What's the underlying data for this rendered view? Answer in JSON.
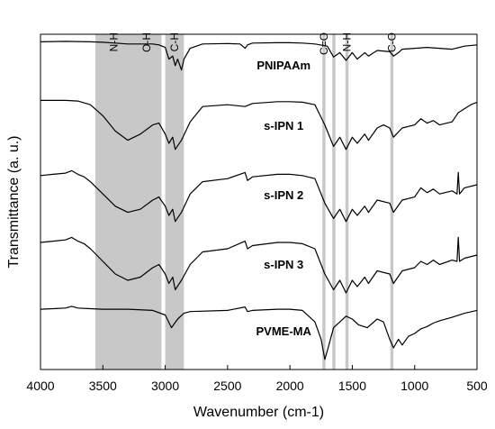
{
  "chart_data": {
    "type": "line",
    "xlabel": "Wavenumber (cm-1)",
    "ylabel": "Transmittance (a. u.)",
    "xlim": [
      4000,
      500
    ],
    "x_reversed": true,
    "x_ticks": [
      4000,
      3500,
      3000,
      2500,
      2000,
      1500,
      1000,
      500
    ],
    "grid": false,
    "shaded_regions": [
      {
        "from": 3560,
        "to": 3030,
        "labels": [
          "N-H",
          "O-H"
        ]
      },
      {
        "from": 3000,
        "to": 2850,
        "labels": [
          "C-H"
        ]
      },
      {
        "from": 1740,
        "to": 1715,
        "labels": [
          "C=O"
        ]
      },
      {
        "from": 1660,
        "to": 1635,
        "labels": []
      },
      {
        "from": 1555,
        "to": 1530,
        "labels": [
          "N-H"
        ]
      },
      {
        "from": 1195,
        "to": 1170,
        "labels": [
          "C-O"
        ]
      }
    ],
    "series": [
      {
        "name": "PNIPAAm",
        "points": [
          [
            4000,
            0.95
          ],
          [
            3800,
            0.96
          ],
          [
            3600,
            0.95
          ],
          [
            3500,
            0.94
          ],
          [
            3400,
            0.92
          ],
          [
            3300,
            0.9
          ],
          [
            3200,
            0.9
          ],
          [
            3100,
            0.9
          ],
          [
            3050,
            0.88
          ],
          [
            3000,
            0.82
          ],
          [
            2970,
            0.55
          ],
          [
            2940,
            0.62
          ],
          [
            2920,
            0.4
          ],
          [
            2900,
            0.55
          ],
          [
            2870,
            0.3
          ],
          [
            2850,
            0.55
          ],
          [
            2800,
            0.8
          ],
          [
            2700,
            0.9
          ],
          [
            2500,
            0.91
          ],
          [
            2400,
            0.9
          ],
          [
            2360,
            0.8
          ],
          [
            2340,
            0.88
          ],
          [
            2300,
            0.92
          ],
          [
            2100,
            0.93
          ],
          [
            2000,
            0.93
          ],
          [
            1900,
            0.92
          ],
          [
            1800,
            0.9
          ],
          [
            1700,
            0.85
          ],
          [
            1650,
            0.6
          ],
          [
            1600,
            0.7
          ],
          [
            1550,
            0.52
          ],
          [
            1500,
            0.7
          ],
          [
            1460,
            0.55
          ],
          [
            1400,
            0.7
          ],
          [
            1370,
            0.62
          ],
          [
            1300,
            0.75
          ],
          [
            1200,
            0.72
          ],
          [
            1170,
            0.62
          ],
          [
            1130,
            0.7
          ],
          [
            1100,
            0.78
          ],
          [
            1000,
            0.8
          ],
          [
            900,
            0.82
          ],
          [
            800,
            0.8
          ],
          [
            700,
            0.78
          ],
          [
            600,
            0.85
          ],
          [
            500,
            0.88
          ]
        ]
      },
      {
        "name": "s-IPN 1",
        "points": [
          [
            4000,
            0.95
          ],
          [
            3900,
            0.95
          ],
          [
            3800,
            0.95
          ],
          [
            3700,
            0.94
          ],
          [
            3600,
            0.88
          ],
          [
            3500,
            0.7
          ],
          [
            3400,
            0.45
          ],
          [
            3300,
            0.3
          ],
          [
            3200,
            0.4
          ],
          [
            3100,
            0.55
          ],
          [
            3050,
            0.58
          ],
          [
            3000,
            0.4
          ],
          [
            2970,
            0.25
          ],
          [
            2940,
            0.35
          ],
          [
            2920,
            0.15
          ],
          [
            2870,
            0.3
          ],
          [
            2800,
            0.6
          ],
          [
            2700,
            0.85
          ],
          [
            2500,
            0.88
          ],
          [
            2360,
            0.85
          ],
          [
            2300,
            0.9
          ],
          [
            2100,
            0.93
          ],
          [
            2000,
            0.93
          ],
          [
            1900,
            0.92
          ],
          [
            1800,
            0.88
          ],
          [
            1720,
            0.55
          ],
          [
            1650,
            0.2
          ],
          [
            1600,
            0.35
          ],
          [
            1550,
            0.15
          ],
          [
            1500,
            0.35
          ],
          [
            1460,
            0.25
          ],
          [
            1400,
            0.4
          ],
          [
            1370,
            0.3
          ],
          [
            1300,
            0.5
          ],
          [
            1250,
            0.55
          ],
          [
            1200,
            0.5
          ],
          [
            1170,
            0.35
          ],
          [
            1100,
            0.5
          ],
          [
            1000,
            0.55
          ],
          [
            950,
            0.65
          ],
          [
            900,
            0.58
          ],
          [
            850,
            0.62
          ],
          [
            800,
            0.55
          ],
          [
            700,
            0.6
          ],
          [
            650,
            0.75
          ],
          [
            550,
            0.88
          ],
          [
            500,
            0.92
          ]
        ]
      },
      {
        "name": "s-IPN 2",
        "points": [
          [
            4000,
            0.9
          ],
          [
            3900,
            0.92
          ],
          [
            3800,
            0.94
          ],
          [
            3750,
            0.98
          ],
          [
            3700,
            0.92
          ],
          [
            3650,
            0.88
          ],
          [
            3600,
            0.8
          ],
          [
            3500,
            0.6
          ],
          [
            3400,
            0.4
          ],
          [
            3300,
            0.3
          ],
          [
            3200,
            0.35
          ],
          [
            3100,
            0.5
          ],
          [
            3050,
            0.55
          ],
          [
            3000,
            0.4
          ],
          [
            2970,
            0.25
          ],
          [
            2940,
            0.35
          ],
          [
            2920,
            0.15
          ],
          [
            2870,
            0.3
          ],
          [
            2800,
            0.6
          ],
          [
            2700,
            0.8
          ],
          [
            2500,
            0.85
          ],
          [
            2360,
            0.95
          ],
          [
            2340,
            0.82
          ],
          [
            2300,
            0.88
          ],
          [
            2100,
            0.92
          ],
          [
            2000,
            0.92
          ],
          [
            1900,
            0.9
          ],
          [
            1800,
            0.85
          ],
          [
            1720,
            0.45
          ],
          [
            1650,
            0.2
          ],
          [
            1600,
            0.35
          ],
          [
            1550,
            0.15
          ],
          [
            1500,
            0.35
          ],
          [
            1460,
            0.25
          ],
          [
            1400,
            0.4
          ],
          [
            1370,
            0.3
          ],
          [
            1300,
            0.5
          ],
          [
            1200,
            0.45
          ],
          [
            1170,
            0.3
          ],
          [
            1100,
            0.5
          ],
          [
            1000,
            0.55
          ],
          [
            950,
            0.7
          ],
          [
            900,
            0.62
          ],
          [
            850,
            0.68
          ],
          [
            800,
            0.6
          ],
          [
            700,
            0.65
          ],
          [
            660,
            0.6
          ],
          [
            650,
            0.95
          ],
          [
            640,
            0.6
          ],
          [
            600,
            0.7
          ],
          [
            500,
            0.75
          ]
        ]
      },
      {
        "name": "s-IPN 3",
        "points": [
          [
            4000,
            0.9
          ],
          [
            3900,
            0.92
          ],
          [
            3800,
            0.94
          ],
          [
            3750,
            0.98
          ],
          [
            3700,
            0.92
          ],
          [
            3650,
            0.88
          ],
          [
            3600,
            0.8
          ],
          [
            3500,
            0.6
          ],
          [
            3400,
            0.4
          ],
          [
            3300,
            0.3
          ],
          [
            3200,
            0.35
          ],
          [
            3100,
            0.5
          ],
          [
            3050,
            0.55
          ],
          [
            3000,
            0.4
          ],
          [
            2970,
            0.25
          ],
          [
            2940,
            0.35
          ],
          [
            2920,
            0.15
          ],
          [
            2870,
            0.3
          ],
          [
            2800,
            0.55
          ],
          [
            2700,
            0.75
          ],
          [
            2500,
            0.8
          ],
          [
            2360,
            0.92
          ],
          [
            2340,
            0.8
          ],
          [
            2300,
            0.85
          ],
          [
            2100,
            0.9
          ],
          [
            2000,
            0.9
          ],
          [
            1900,
            0.88
          ],
          [
            1800,
            0.8
          ],
          [
            1720,
            0.4
          ],
          [
            1650,
            0.15
          ],
          [
            1600,
            0.3
          ],
          [
            1550,
            0.1
          ],
          [
            1500,
            0.3
          ],
          [
            1460,
            0.2
          ],
          [
            1400,
            0.35
          ],
          [
            1370,
            0.25
          ],
          [
            1300,
            0.45
          ],
          [
            1200,
            0.4
          ],
          [
            1170,
            0.25
          ],
          [
            1100,
            0.45
          ],
          [
            1000,
            0.5
          ],
          [
            950,
            0.6
          ],
          [
            900,
            0.55
          ],
          [
            850,
            0.62
          ],
          [
            800,
            0.55
          ],
          [
            700,
            0.62
          ],
          [
            660,
            0.6
          ],
          [
            650,
            0.98
          ],
          [
            640,
            0.6
          ],
          [
            600,
            0.65
          ],
          [
            500,
            0.7
          ]
        ]
      },
      {
        "name": "PVME-MA",
        "points": [
          [
            4000,
            0.92
          ],
          [
            3900,
            0.93
          ],
          [
            3800,
            0.94
          ],
          [
            3750,
            0.97
          ],
          [
            3700,
            0.94
          ],
          [
            3600,
            0.93
          ],
          [
            3500,
            0.92
          ],
          [
            3300,
            0.92
          ],
          [
            3100,
            0.9
          ],
          [
            3000,
            0.82
          ],
          [
            2950,
            0.6
          ],
          [
            2900,
            0.75
          ],
          [
            2850,
            0.85
          ],
          [
            2800,
            0.88
          ],
          [
            2500,
            0.9
          ],
          [
            2360,
            0.96
          ],
          [
            2340,
            0.88
          ],
          [
            2300,
            0.9
          ],
          [
            2100,
            0.92
          ],
          [
            2000,
            0.92
          ],
          [
            1900,
            0.9
          ],
          [
            1800,
            0.7
          ],
          [
            1750,
            0.4
          ],
          [
            1720,
            0.05
          ],
          [
            1700,
            0.2
          ],
          [
            1650,
            0.6
          ],
          [
            1600,
            0.7
          ],
          [
            1550,
            0.8
          ],
          [
            1500,
            0.75
          ],
          [
            1450,
            0.65
          ],
          [
            1380,
            0.6
          ],
          [
            1300,
            0.75
          ],
          [
            1250,
            0.7
          ],
          [
            1200,
            0.4
          ],
          [
            1170,
            0.25
          ],
          [
            1130,
            0.4
          ],
          [
            1100,
            0.3
          ],
          [
            1050,
            0.45
          ],
          [
            1000,
            0.5
          ],
          [
            950,
            0.58
          ],
          [
            900,
            0.62
          ],
          [
            850,
            0.68
          ],
          [
            800,
            0.72
          ],
          [
            700,
            0.78
          ],
          [
            600,
            0.85
          ],
          [
            500,
            0.9
          ]
        ]
      }
    ]
  }
}
